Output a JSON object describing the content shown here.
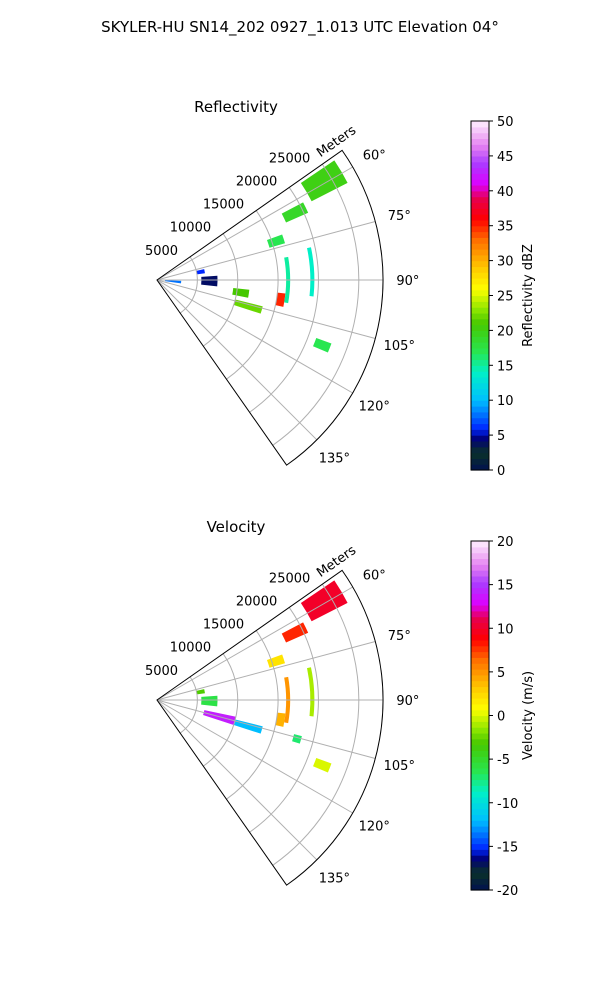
{
  "suptitle": "SKYLER-HU  SN14_202  0927_1.013 UTC Elevation 04°",
  "chart_data": [
    {
      "type": "polar-sector",
      "title": "Reflectivity",
      "radial_label": "Meters",
      "theta_range_deg": [
        55,
        145
      ],
      "r_max": 28000,
      "r_ticks": [
        5000,
        10000,
        15000,
        20000,
        25000
      ],
      "r_tick_labels": [
        "5000",
        "10000",
        "15000",
        "20000",
        "25000"
      ],
      "theta_ticks": [
        60,
        75,
        90,
        105,
        120,
        135
      ],
      "theta_tick_labels": [
        "60°",
        "75°",
        "90°",
        "105°",
        "120°",
        "135°"
      ],
      "grid": true,
      "colorbar": {
        "label": "Reflectivity dBZ",
        "min": 0,
        "max": 50,
        "ticks": [
          0,
          5,
          10,
          15,
          20,
          25,
          30,
          35,
          40,
          45,
          50
        ],
        "tick_labels": [
          "0",
          "5",
          "10",
          "15",
          "20",
          "25",
          "30",
          "35",
          "40",
          "45",
          "50"
        ]
      },
      "echo_regions": [
        {
          "theta": [
            56,
            63
          ],
          "r": [
            21500,
            26500
          ],
          "value": 20
        },
        {
          "theta": [
            62,
            66
          ],
          "r": [
            17500,
            20500
          ],
          "value": 19
        },
        {
          "theta": [
            70,
            74
          ],
          "r": [
            14500,
            16500
          ],
          "value": 17
        },
        {
          "theta": [
            96,
            101
          ],
          "r": [
            9500,
            11500
          ],
          "value": 21
        },
        {
          "theta": [
            104,
            108
          ],
          "r": [
            10000,
            13500
          ],
          "value": 22
        },
        {
          "theta": [
            96,
            102
          ],
          "r": [
            15000,
            16000
          ],
          "value": 35
        },
        {
          "theta": [
            80,
            100
          ],
          "r": [
            16000,
            16500
          ],
          "value": 15
        },
        {
          "theta": [
            86,
            96
          ],
          "r": [
            5500,
            7500
          ],
          "value": 4
        },
        {
          "theta": [
            77,
            82
          ],
          "r": [
            5000,
            6000
          ],
          "value": 6
        },
        {
          "theta": [
            110,
            113
          ],
          "r": [
            21000,
            23000
          ],
          "value": 17
        },
        {
          "theta": [
            92,
            98
          ],
          "r": [
            1000,
            3000
          ],
          "value": 8
        },
        {
          "theta": [
            78,
            96
          ],
          "r": [
            19000,
            19500
          ],
          "value": 14
        }
      ]
    },
    {
      "type": "polar-sector",
      "title": "Velocity",
      "radial_label": "Meters",
      "theta_range_deg": [
        55,
        145
      ],
      "r_max": 28000,
      "r_ticks": [
        5000,
        10000,
        15000,
        20000,
        25000
      ],
      "r_tick_labels": [
        "5000",
        "10000",
        "15000",
        "20000",
        "25000"
      ],
      "theta_ticks": [
        60,
        75,
        90,
        105,
        120,
        135
      ],
      "theta_tick_labels": [
        "60°",
        "75°",
        "90°",
        "105°",
        "120°",
        "135°"
      ],
      "grid": true,
      "colorbar": {
        "label": "Velocity (m/s)",
        "min": -20,
        "max": 20,
        "ticks": [
          -20,
          -15,
          -10,
          -5,
          0,
          5,
          10,
          15,
          20
        ],
        "tick_labels": [
          "-20",
          "-15",
          "-10",
          "-5",
          "0",
          "5",
          "10",
          "15",
          "20"
        ]
      },
      "echo_regions": [
        {
          "theta": [
            56,
            63
          ],
          "r": [
            21500,
            26500
          ],
          "value": 10
        },
        {
          "theta": [
            62,
            66
          ],
          "r": [
            17500,
            20500
          ],
          "value": 8
        },
        {
          "theta": [
            70,
            74
          ],
          "r": [
            14500,
            16500
          ],
          "value": 2
        },
        {
          "theta": [
            102,
            108
          ],
          "r": [
            6000,
            10000
          ],
          "value": 14
        },
        {
          "theta": [
            104,
            108
          ],
          "r": [
            10000,
            13500
          ],
          "value": -12
        },
        {
          "theta": [
            96,
            102
          ],
          "r": [
            15000,
            16000
          ],
          "value": 4
        },
        {
          "theta": [
            80,
            100
          ],
          "r": [
            16000,
            16500
          ],
          "value": 5
        },
        {
          "theta": [
            86,
            96
          ],
          "r": [
            5500,
            7500
          ],
          "value": -6
        },
        {
          "theta": [
            77,
            82
          ],
          "r": [
            5000,
            6000
          ],
          "value": -3
        },
        {
          "theta": [
            110,
            113
          ],
          "r": [
            21000,
            23000
          ],
          "value": 0
        },
        {
          "theta": [
            104,
            107
          ],
          "r": [
            17500,
            18500
          ],
          "value": -7
        },
        {
          "theta": [
            78,
            96
          ],
          "r": [
            19000,
            19500
          ],
          "value": -1
        }
      ]
    }
  ]
}
